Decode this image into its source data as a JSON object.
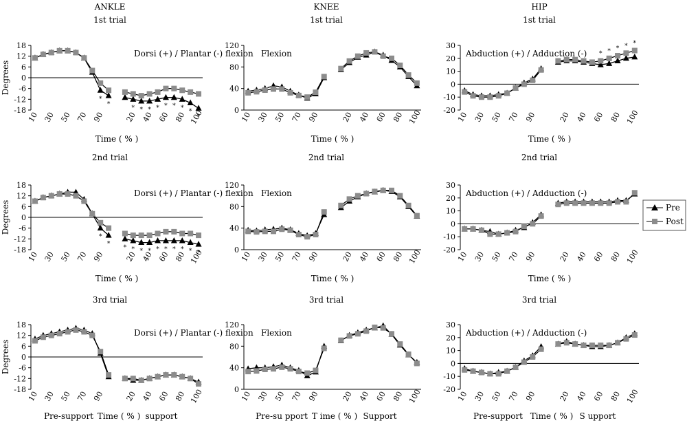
{
  "headers": {
    "ankle": "ANKLE",
    "knee": "KNEE",
    "hip": "HIP"
  },
  "trial_titles": [
    "1st trial",
    "2nd trial",
    "3rd trial"
  ],
  "xlabel": "Time ( % )",
  "ylabel_ankle": "Degrees",
  "bottom_labels": {
    "ankle": [
      "Pre-support",
      "Time ( % )",
      "support"
    ],
    "knee": [
      "Pre-su pport",
      "T ime ( % )",
      "Support"
    ],
    "hip": [
      "Pre-support",
      "Time ( % )",
      "S upport"
    ]
  },
  "legend": {
    "pre": "Pre",
    "post": "Post"
  },
  "colors": {
    "pre": "#000000",
    "post": "#8c8c8c",
    "line": "#000000"
  },
  "star": "*",
  "chart_data": [
    {
      "type": "line",
      "joint": "ankle",
      "trial": "1st trial",
      "annotation": "Dorsi (+) / Plantar (-) flexion",
      "ylim": [
        -18,
        18
      ],
      "yticks": [
        18,
        12,
        6,
        0,
        -6,
        -12,
        -18
      ],
      "presupport_ticks": [
        "10",
        "30",
        "50",
        "70",
        "90"
      ],
      "support_ticks": [
        "20",
        "40",
        "60",
        "80",
        "100"
      ],
      "presupport_x": [
        10,
        20,
        30,
        40,
        50,
        60,
        70,
        80,
        90,
        100
      ],
      "support_x": [
        10,
        20,
        30,
        40,
        50,
        60,
        70,
        80,
        90,
        100
      ],
      "series": [
        {
          "name": "Pre",
          "presupport": [
            11,
            13,
            14,
            15,
            15,
            14,
            11,
            3,
            -7,
            -10
          ],
          "support": [
            -11,
            -12,
            -13,
            -13,
            -12,
            -11,
            -11,
            -12,
            -14,
            -17
          ]
        },
        {
          "name": "Post",
          "presupport": [
            11,
            13,
            14,
            15,
            15,
            14,
            11,
            4,
            -3,
            -7
          ],
          "support": [
            -8,
            -9,
            -10,
            -9,
            -8,
            -6,
            -6,
            -7,
            -8,
            -9
          ]
        }
      ],
      "stars_presupport": [
        9,
        10
      ],
      "stars_support": [
        2,
        3,
        4,
        5,
        6,
        7,
        8,
        9,
        10
      ]
    },
    {
      "type": "line",
      "joint": "knee",
      "trial": "1st trial",
      "annotation": "Flexion",
      "ylim": [
        0,
        120
      ],
      "yticks": [
        120,
        80,
        40,
        0
      ],
      "presupport_ticks": [
        "10",
        "30",
        "50",
        "70",
        "90"
      ],
      "support_ticks": [
        "20",
        "40",
        "60",
        "80",
        "100"
      ],
      "presupport_x": [
        10,
        20,
        30,
        40,
        50,
        60,
        70,
        80,
        90,
        100
      ],
      "support_x": [
        10,
        20,
        30,
        40,
        50,
        60,
        70,
        80,
        90,
        100
      ],
      "series": [
        {
          "name": "Pre",
          "presupport": [
            35,
            37,
            40,
            45,
            43,
            35,
            28,
            22,
            30,
            60
          ],
          "support": [
            75,
            88,
            98,
            102,
            108,
            102,
            92,
            80,
            62,
            45
          ]
        },
        {
          "name": "Post",
          "presupport": [
            32,
            34,
            37,
            39,
            39,
            32,
            27,
            24,
            33,
            62
          ],
          "support": [
            77,
            91,
            100,
            106,
            108,
            100,
            96,
            83,
            65,
            50
          ]
        }
      ],
      "stars_presupport": [],
      "stars_support": []
    },
    {
      "type": "line",
      "joint": "hip",
      "trial": "1st trial",
      "annotation": "Abduction (+) / Adduction (-)",
      "ylim": [
        -20,
        30
      ],
      "yticks": [
        30,
        20,
        10,
        0,
        -10,
        -20
      ],
      "presupport_ticks": [
        "10",
        "30",
        "50",
        "70",
        "90"
      ],
      "support_ticks": [
        "20",
        "40",
        "60",
        "80",
        "100"
      ],
      "presupport_x": [
        10,
        20,
        30,
        40,
        50,
        60,
        70,
        80,
        90,
        100
      ],
      "support_x": [
        10,
        20,
        30,
        40,
        50,
        60,
        70,
        80,
        90,
        100
      ],
      "series": [
        {
          "name": "Pre",
          "presupport": [
            -5,
            -8,
            -9,
            -9,
            -8,
            -7,
            -3,
            1,
            4,
            12
          ],
          "support": [
            17,
            18,
            18,
            17,
            16,
            15,
            16,
            18,
            20,
            21
          ]
        },
        {
          "name": "Post",
          "presupport": [
            -6,
            -9,
            -10,
            -10,
            -9,
            -7,
            -3,
            0,
            3,
            11
          ],
          "support": [
            18,
            19,
            19,
            18,
            17,
            18,
            20,
            22,
            24,
            26
          ]
        }
      ],
      "stars_presupport": [],
      "stars_support": [
        6,
        7,
        8,
        9,
        10
      ]
    },
    {
      "type": "line",
      "joint": "ankle",
      "trial": "2nd trial",
      "annotation": "Dorsi (+) / Plantar (-) flexion",
      "ylim": [
        -18,
        18
      ],
      "yticks": [
        18,
        12,
        6,
        0,
        -6,
        -12,
        -18
      ],
      "presupport_ticks": [
        "10",
        "30",
        "50",
        "70",
        "90"
      ],
      "support_ticks": [
        "20",
        "40",
        "60",
        "80",
        "100"
      ],
      "presupport_x": [
        10,
        20,
        30,
        40,
        50,
        60,
        70,
        80,
        90,
        100
      ],
      "support_x": [
        10,
        20,
        30,
        40,
        50,
        60,
        70,
        80,
        90,
        100
      ],
      "series": [
        {
          "name": "Pre",
          "presupport": [
            9,
            11,
            12,
            13,
            14,
            14,
            10,
            2,
            -6,
            -10
          ],
          "support": [
            -12,
            -13,
            -14,
            -14,
            -13,
            -13,
            -13,
            -13,
            -14,
            -15
          ]
        },
        {
          "name": "Post",
          "presupport": [
            9,
            11,
            12,
            13,
            13,
            12,
            9,
            2,
            -3,
            -6
          ],
          "support": [
            -9,
            -10,
            -10,
            -10,
            -9,
            -8,
            -8,
            -9,
            -9,
            -10
          ]
        }
      ],
      "stars_presupport": [
        9,
        10
      ],
      "stars_support": [
        1,
        2,
        3,
        4,
        5,
        6,
        7,
        8,
        9,
        10
      ]
    },
    {
      "type": "line",
      "joint": "knee",
      "trial": "2nd trial",
      "annotation": "Flexion",
      "ylim": [
        0,
        120
      ],
      "yticks": [
        120,
        80,
        40,
        0
      ],
      "presupport_ticks": [
        "10",
        "30",
        "50",
        "70",
        "90"
      ],
      "support_ticks": [
        "20",
        "40",
        "60",
        "80",
        "100"
      ],
      "presupport_x": [
        10,
        20,
        30,
        40,
        50,
        60,
        70,
        80,
        90,
        100
      ],
      "support_x": [
        10,
        20,
        30,
        40,
        50,
        60,
        70,
        80,
        90,
        100
      ],
      "series": [
        {
          "name": "Pre",
          "presupport": [
            36,
            35,
            37,
            38,
            40,
            37,
            30,
            26,
            30,
            65
          ],
          "support": [
            78,
            90,
            98,
            104,
            107,
            110,
            108,
            98,
            80,
            62
          ]
        },
        {
          "name": "Post",
          "presupport": [
            34,
            33,
            34,
            34,
            38,
            36,
            28,
            24,
            28,
            70
          ],
          "support": [
            82,
            94,
            100,
            104,
            108,
            110,
            110,
            100,
            82,
            63
          ]
        }
      ],
      "stars_presupport": [],
      "stars_support": []
    },
    {
      "type": "line",
      "joint": "hip",
      "trial": "2nd trial",
      "annotation": "Abduction (+) / Adduction (-)",
      "ylim": [
        -20,
        30
      ],
      "yticks": [
        30,
        20,
        10,
        0,
        -10,
        -20
      ],
      "presupport_x": [
        10,
        20,
        30,
        40,
        50,
        60,
        70,
        80,
        90,
        100
      ],
      "support_x": [
        10,
        20,
        30,
        40,
        50,
        60,
        70,
        80,
        90,
        100
      ],
      "presupport_ticks": [
        "10",
        "30",
        "50",
        "70",
        "90"
      ],
      "support_ticks": [
        "20",
        "40",
        "60",
        "80",
        "100"
      ],
      "series": [
        {
          "name": "Pre",
          "presupport": [
            -4,
            -4,
            -5,
            -6,
            -8,
            -7,
            -5,
            -3,
            1,
            7
          ],
          "support": [
            16,
            17,
            17,
            17,
            17,
            17,
            17,
            18,
            18,
            23
          ]
        },
        {
          "name": "Post",
          "presupport": [
            -4,
            -4,
            -5,
            -8,
            -8,
            -7,
            -6,
            -2,
            0,
            6
          ],
          "support": [
            15,
            16,
            16,
            16,
            16,
            16,
            16,
            17,
            17,
            24
          ]
        }
      ],
      "stars_presupport": [],
      "stars_support": []
    },
    {
      "type": "line",
      "joint": "ankle",
      "trial": "3rd trial",
      "annotation": "Dorsi (+) / Plantar (-) flexion",
      "ylim": [
        -18,
        18
      ],
      "yticks": [
        18,
        12,
        6,
        0,
        -6,
        -12,
        -18
      ],
      "presupport_ticks": [
        "10",
        "30",
        "50",
        "70",
        "90"
      ],
      "support_ticks": [
        "20",
        "40",
        "60",
        "80",
        "100"
      ],
      "presupport_x": [
        10,
        20,
        30,
        40,
        50,
        60,
        70,
        80,
        90,
        100
      ],
      "support_x": [
        10,
        20,
        30,
        40,
        50,
        60,
        70,
        80,
        90,
        100
      ],
      "series": [
        {
          "name": "Pre",
          "presupport": [
            10,
            12,
            13,
            14,
            15,
            16,
            15,
            13,
            2,
            -11
          ],
          "support": [
            -12,
            -13,
            -13,
            -12,
            -11,
            -10,
            -10,
            -11,
            -12,
            -14
          ]
        },
        {
          "name": "Post",
          "presupport": [
            9,
            11,
            12,
            13,
            14,
            15,
            14,
            12,
            3,
            -10
          ],
          "support": [
            -12,
            -12,
            -13,
            -12,
            -11,
            -10,
            -10,
            -11,
            -12,
            -15
          ]
        }
      ],
      "stars_presupport": [],
      "stars_support": []
    },
    {
      "type": "line",
      "joint": "knee",
      "trial": "3rd trial",
      "annotation": "Flexion",
      "ylim": [
        0,
        120
      ],
      "yticks": [
        120,
        80,
        40,
        0
      ],
      "presupport_ticks": [
        "10",
        "30",
        "50",
        "70",
        "90"
      ],
      "support_ticks": [
        "20",
        "40",
        "60",
        "80",
        "100"
      ],
      "presupport_x": [
        10,
        20,
        30,
        40,
        50,
        60,
        70,
        80,
        90,
        100
      ],
      "support_x": [
        10,
        20,
        30,
        40,
        50,
        60,
        70,
        80,
        90,
        100
      ],
      "series": [
        {
          "name": "Pre",
          "presupport": [
            38,
            40,
            40,
            42,
            45,
            40,
            35,
            25,
            32,
            80
          ],
          "support": [
            90,
            100,
            105,
            110,
            114,
            118,
            102,
            82,
            64,
            50
          ]
        },
        {
          "name": "Post",
          "presupport": [
            33,
            34,
            37,
            38,
            41,
            38,
            33,
            30,
            35,
            76
          ],
          "support": [
            91,
            99,
            103,
            108,
            115,
            114,
            103,
            84,
            65,
            48
          ]
        }
      ],
      "stars_presupport": [],
      "stars_support": []
    },
    {
      "type": "line",
      "joint": "hip",
      "trial": "3rd trial",
      "annotation": "Abduction (+) / Adduction (-)",
      "ylim": [
        -20,
        30
      ],
      "yticks": [
        30,
        20,
        10,
        0,
        -10,
        -20
      ],
      "presupport_ticks": [
        "10",
        "30",
        "50",
        "70",
        "90"
      ],
      "support_ticks": [
        "20",
        "40",
        "60",
        "80",
        "100"
      ],
      "presupport_x": [
        10,
        20,
        30,
        40,
        50,
        60,
        70,
        80,
        90,
        100
      ],
      "support_x": [
        10,
        20,
        30,
        40,
        50,
        60,
        70,
        80,
        90,
        100
      ],
      "series": [
        {
          "name": "Pre",
          "presupport": [
            -4,
            -6,
            -7,
            -8,
            -7,
            -6,
            -3,
            2,
            6,
            13
          ],
          "support": [
            15,
            17,
            15,
            14,
            13,
            13,
            14,
            16,
            20,
            23
          ]
        },
        {
          "name": "Post",
          "presupport": [
            -5,
            -6,
            -7,
            -8,
            -8,
            -6,
            -3,
            1,
            5,
            11
          ],
          "support": [
            15,
            16,
            15,
            14,
            14,
            14,
            14,
            16,
            19,
            22
          ]
        }
      ],
      "stars_presupport": [],
      "stars_support": []
    }
  ]
}
